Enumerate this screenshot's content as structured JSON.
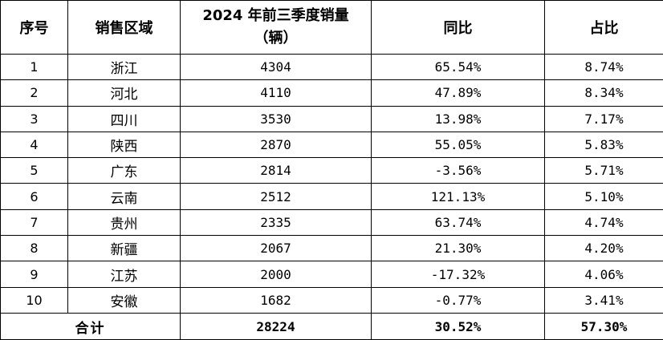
{
  "table": {
    "headers": {
      "index": "序号",
      "region": "销售区域",
      "volume_line1": "2024 年前三季度销量",
      "volume_line2": "（辆）",
      "yoy": "同比",
      "share": "占比"
    },
    "rows": [
      {
        "index": "1",
        "region": "浙江",
        "volume": "4304",
        "yoy": "65.54%",
        "share": "8.74%"
      },
      {
        "index": "2",
        "region": "河北",
        "volume": "4110",
        "yoy": "47.89%",
        "share": "8.34%"
      },
      {
        "index": "3",
        "region": "四川",
        "volume": "3530",
        "yoy": "13.98%",
        "share": "7.17%"
      },
      {
        "index": "4",
        "region": "陕西",
        "volume": "2870",
        "yoy": "55.05%",
        "share": "5.83%"
      },
      {
        "index": "5",
        "region": "广东",
        "volume": "2814",
        "yoy": "-3.56%",
        "share": "5.71%"
      },
      {
        "index": "6",
        "region": "云南",
        "volume": "2512",
        "yoy": "121.13%",
        "share": "5.10%"
      },
      {
        "index": "7",
        "region": "贵州",
        "volume": "2335",
        "yoy": "63.74%",
        "share": "4.74%"
      },
      {
        "index": "8",
        "region": "新疆",
        "volume": "2067",
        "yoy": "21.30%",
        "share": "4.20%"
      },
      {
        "index": "9",
        "region": "江苏",
        "volume": "2000",
        "yoy": "-17.32%",
        "share": "4.06%"
      },
      {
        "index": "10",
        "region": "安徽",
        "volume": "1682",
        "yoy": "-0.77%",
        "share": "3.41%"
      }
    ],
    "total": {
      "label": "合计",
      "volume": "28224",
      "yoy": "30.52%",
      "share": "57.30%"
    }
  }
}
